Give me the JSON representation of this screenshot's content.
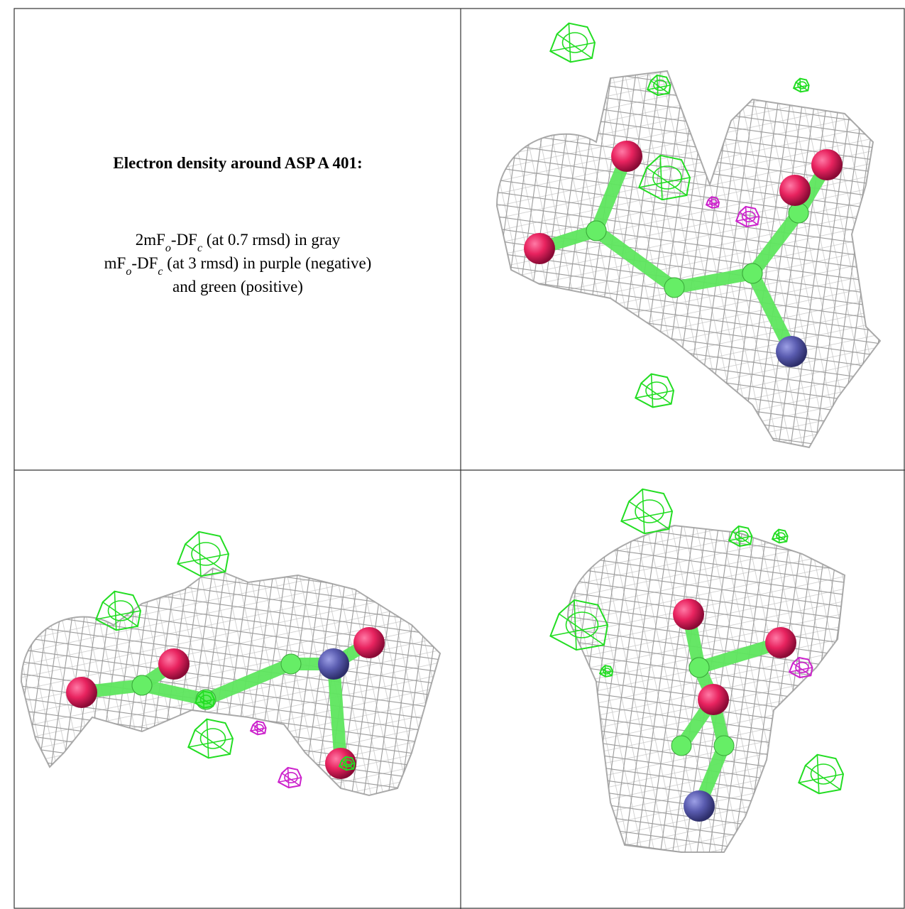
{
  "caption": {
    "title": "Electron density around ASP A 401:",
    "lines": [
      [
        "2mF",
        "o",
        "-DF",
        "c",
        " (at 0.7 rmsd) in gray"
      ],
      [
        "mF",
        "o",
        "-DF",
        "c",
        " (at 3 rmsd) in purple (negative)"
      ],
      [
        "and green (positive)"
      ]
    ]
  }
}
